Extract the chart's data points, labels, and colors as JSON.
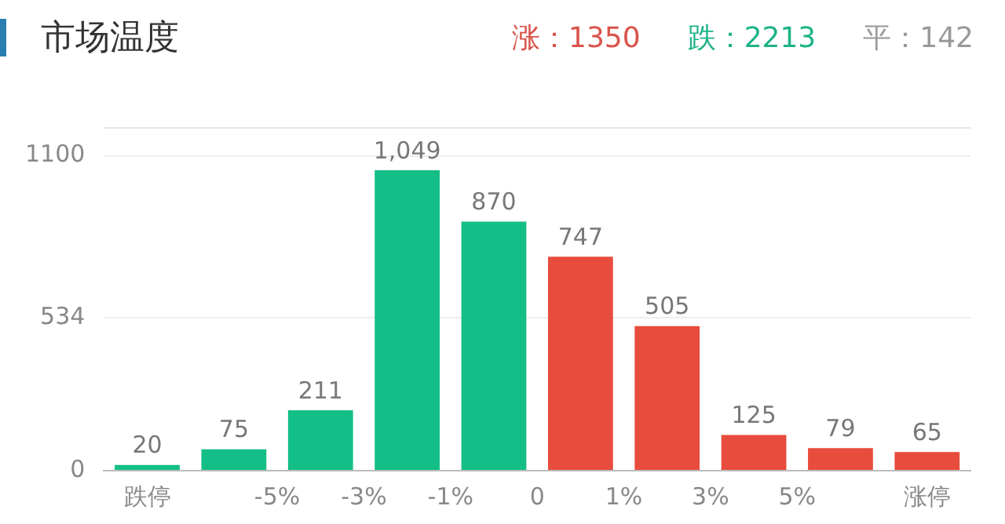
{
  "chart_data": {
    "type": "bar",
    "title": "市场温度",
    "annotations": [
      "涨：1350",
      "跌：2213",
      "平：142"
    ],
    "categories": [
      "跌停",
      "-5%",
      "-3%",
      "-1%",
      "0",
      "1%",
      "3%",
      "5%",
      null,
      "涨停"
    ],
    "values": [
      20,
      75,
      211,
      1049,
      870,
      747,
      505,
      125,
      79,
      65
    ],
    "colors": [
      "#13be87",
      "#13be87",
      "#13be87",
      "#13be87",
      "#13be87",
      "#e84c3d",
      "#e84c3d",
      "#e84c3d",
      "#e84c3d",
      "#e84c3d"
    ],
    "value_labels": [
      "20",
      "75",
      "211",
      "1,049",
      "870",
      "747",
      "505",
      "125",
      "79",
      "65"
    ],
    "ylim": [
      0,
      1200
    ],
    "yticks": [
      0,
      534,
      1100
    ],
    "grid": "y",
    "legend": false
  }
}
